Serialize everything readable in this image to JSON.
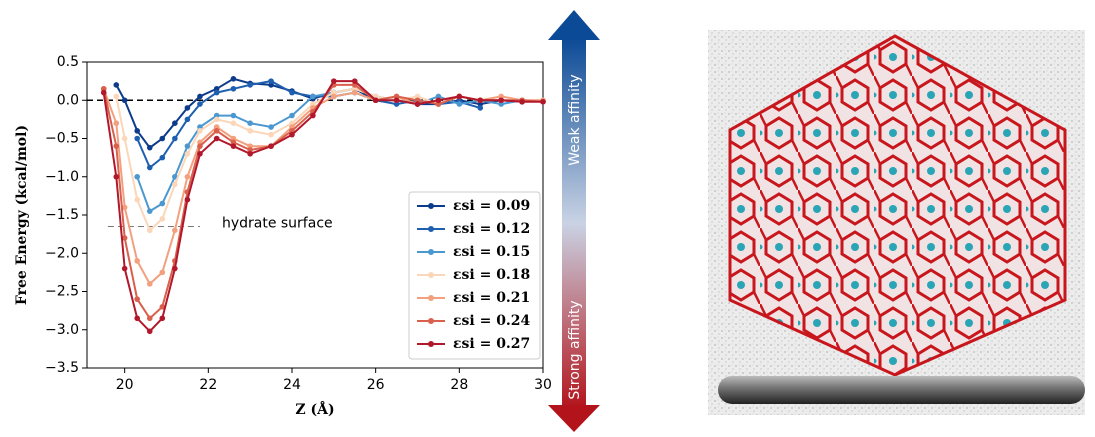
{
  "chart_data": {
    "type": "line",
    "x_label": "Z (Å)",
    "y_label": "Free Energy (kcal/mol)",
    "x": [
      19.5,
      19.8,
      20.0,
      20.3,
      20.6,
      20.9,
      21.2,
      21.5,
      21.8,
      22.2,
      22.6,
      23.0,
      23.5,
      24.0,
      24.5,
      25.0,
      25.5,
      26.0,
      26.5,
      27.0,
      27.5,
      28.0,
      28.5,
      29.0,
      29.5,
      30.0
    ],
    "series": [
      {
        "name": "εsi = 0.09",
        "color": "#0d3b8c",
        "values": [
          null,
          0.2,
          0.0,
          -0.4,
          -0.62,
          -0.5,
          -0.3,
          -0.1,
          0.05,
          0.15,
          0.28,
          0.22,
          0.2,
          0.12,
          0.02,
          0.1,
          0.15,
          0.0,
          0.0,
          -0.05,
          -0.05,
          0.0,
          -0.05,
          0.0,
          -0.02,
          null
        ]
      },
      {
        "name": "εsi = 0.12",
        "color": "#1f5fb0",
        "values": [
          null,
          null,
          null,
          -0.5,
          -0.88,
          -0.75,
          -0.5,
          -0.25,
          -0.05,
          0.1,
          0.15,
          0.2,
          0.25,
          0.1,
          0.05,
          0.05,
          0.1,
          0.0,
          -0.05,
          0.0,
          -0.05,
          -0.02,
          -0.1,
          null,
          null,
          null
        ]
      },
      {
        "name": "εsi = 0.15",
        "color": "#4b98d0",
        "values": [
          null,
          null,
          null,
          -1.0,
          -1.45,
          -1.35,
          -1.0,
          -0.6,
          -0.35,
          -0.2,
          -0.2,
          -0.3,
          -0.35,
          -0.2,
          0.05,
          0.1,
          0.15,
          0.05,
          0.0,
          -0.05,
          0.05,
          -0.05,
          0.0,
          -0.05,
          0.0,
          null
        ]
      },
      {
        "name": "εsi = 0.18",
        "color": "#fbd6b8",
        "values": [
          null,
          0.05,
          -0.5,
          -1.3,
          -1.7,
          -1.55,
          -1.1,
          -0.7,
          -0.4,
          -0.25,
          -0.3,
          -0.4,
          -0.45,
          -0.3,
          -0.05,
          0.1,
          0.15,
          0.05,
          0.0,
          0.05,
          -0.05,
          0.05,
          0.0,
          0.05,
          0.0,
          -0.02
        ]
      },
      {
        "name": "εsi = 0.21",
        "color": "#f2a07e",
        "values": [
          0.15,
          -0.3,
          -1.4,
          -2.1,
          -2.4,
          -2.25,
          -1.7,
          -1.0,
          -0.55,
          -0.35,
          -0.5,
          -0.6,
          -0.6,
          -0.35,
          -0.1,
          0.05,
          0.1,
          0.0,
          0.05,
          -0.05,
          0.0,
          0.05,
          0.0,
          0.05,
          0.0,
          0.0
        ]
      },
      {
        "name": "εsi = 0.24",
        "color": "#d9604c",
        "values": [
          0.15,
          -0.6,
          -1.8,
          -2.6,
          -2.85,
          -2.7,
          -2.1,
          -1.2,
          -0.6,
          -0.4,
          -0.55,
          -0.65,
          -0.6,
          -0.4,
          -0.15,
          0.2,
          0.2,
          0.0,
          0.05,
          0.0,
          -0.05,
          0.05,
          0.0,
          0.0,
          0.0,
          -0.02
        ]
      },
      {
        "name": "εsi = 0.27",
        "color": "#b2182b",
        "values": [
          0.1,
          -1.0,
          -2.2,
          -2.85,
          -3.02,
          -2.85,
          -2.2,
          -1.3,
          -0.7,
          -0.5,
          -0.6,
          -0.7,
          -0.6,
          -0.45,
          -0.2,
          0.25,
          0.25,
          0.0,
          0.0,
          -0.05,
          0.0,
          0.05,
          0.0,
          0.0,
          -0.02,
          -0.02
        ]
      }
    ],
    "xlim": [
      19.1,
      30
    ],
    "xticks": [
      20,
      22,
      24,
      26,
      28,
      30
    ],
    "ylim": [
      -3.5,
      0.5
    ],
    "yticks": [
      {
        "value": -3.5,
        "label": "−3.5"
      },
      {
        "value": -3.0,
        "label": "−3.0"
      },
      {
        "value": -2.5,
        "label": "−2.5"
      },
      {
        "value": -2.0,
        "label": "−2.0"
      },
      {
        "value": -1.5,
        "label": "−1.5"
      },
      {
        "value": -1.0,
        "label": "−1.0"
      },
      {
        "value": -0.5,
        "label": "−0.5"
      },
      {
        "value": 0,
        "label": "0.0"
      },
      {
        "value": 0.5,
        "label": "0.5"
      }
    ],
    "hlines": [
      0
    ],
    "annotations": [
      {
        "text": "hydrate surface",
        "y": -1.65,
        "x_range": [
          19.6,
          21.8
        ]
      }
    ],
    "legend": "lower right",
    "affinity_arrow": {
      "top": "Weak affinity",
      "bottom": "Strong affinity"
    }
  }
}
